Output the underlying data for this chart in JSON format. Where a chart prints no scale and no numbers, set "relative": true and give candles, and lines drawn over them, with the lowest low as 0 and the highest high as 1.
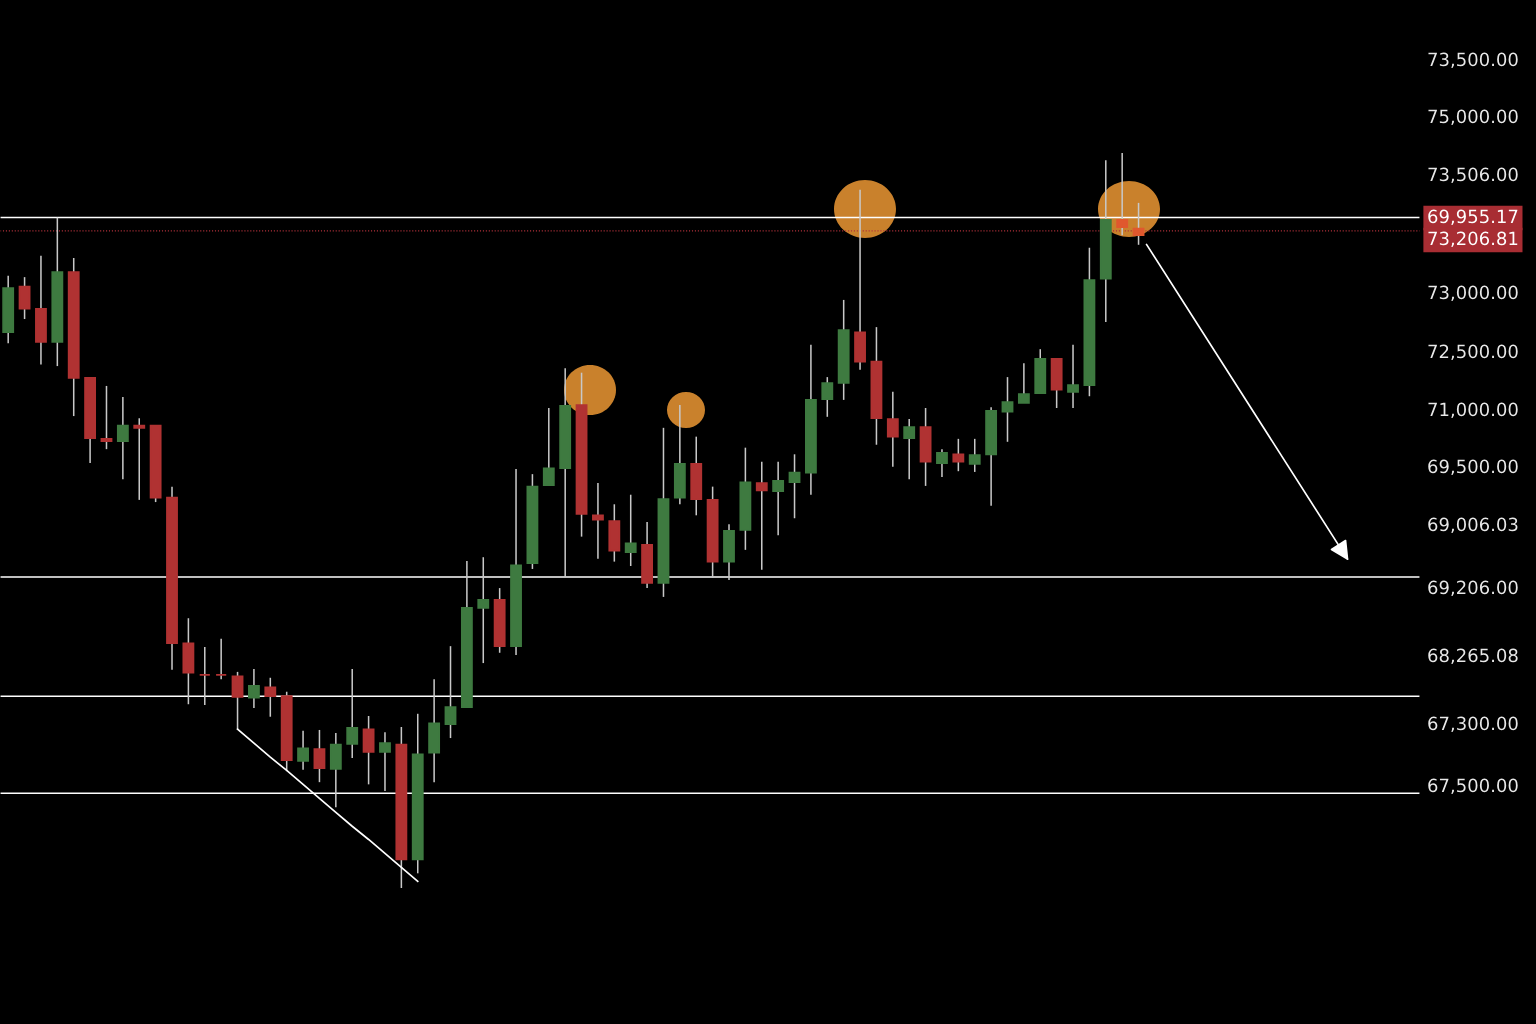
{
  "chart_data": {
    "type": "candlestick",
    "relative": true,
    "tick_labels": "y",
    "grid": false,
    "categories": [
      null,
      null,
      null,
      null,
      null,
      null,
      null,
      null,
      null,
      null,
      null,
      null,
      null,
      null,
      null,
      null,
      null,
      null,
      null,
      null,
      null,
      null,
      null,
      null,
      null,
      null,
      null,
      null,
      null,
      null,
      null,
      null,
      null,
      null,
      null,
      null,
      null,
      null,
      null,
      null,
      null,
      null,
      null,
      null,
      null,
      null,
      null,
      null,
      null,
      null,
      null,
      null,
      null,
      null,
      null,
      null,
      null,
      null,
      null,
      null,
      null,
      null,
      null,
      null,
      null,
      null,
      null,
      null,
      null,
      null
    ],
    "ohlc": [
      [
        0.756,
        0.833,
        0.741,
        0.816
      ],
      [
        0.818,
        0.831,
        0.774,
        0.788
      ],
      [
        0.788,
        0.86,
        0.712,
        0.743
      ],
      [
        0.743,
        0.912,
        0.71,
        0.838
      ],
      [
        0.838,
        0.857,
        0.642,
        0.694
      ],
      [
        0.694,
        0.694,
        0.578,
        0.612
      ],
      [
        0.611,
        0.683,
        0.597,
        0.608
      ],
      [
        0.608,
        0.668,
        0.556,
        0.629
      ],
      [
        0.629,
        0.639,
        0.528,
        0.626
      ],
      [
        0.629,
        0.629,
        0.525,
        0.531
      ],
      [
        0.531,
        0.546,
        0.297,
        0.333
      ],
      [
        0.333,
        0.367,
        0.25,
        0.293
      ],
      [
        0.29,
        0.328,
        0.249,
        0.29
      ],
      [
        0.29,
        0.339,
        0.284,
        0.29
      ],
      [
        0.288,
        0.294,
        0.216,
        0.26
      ],
      [
        0.259,
        0.298,
        0.245,
        0.275
      ],
      [
        0.273,
        0.286,
        0.233,
        0.261
      ],
      [
        0.261,
        0.267,
        0.159,
        0.174
      ],
      [
        0.173,
        0.214,
        0.161,
        0.19
      ],
      [
        0.189,
        0.215,
        0.144,
        0.163
      ],
      [
        0.162,
        0.211,
        0.11,
        0.195
      ],
      [
        0.196,
        0.298,
        0.177,
        0.218
      ],
      [
        0.216,
        0.234,
        0.141,
        0.185
      ],
      [
        0.185,
        0.212,
        0.132,
        0.197
      ],
      [
        0.195,
        0.219,
        0,
        0.039
      ],
      [
        0.039,
        0.237,
        0.02,
        0.182
      ],
      [
        0.184,
        0.284,
        0.144,
        0.224
      ],
      [
        0.223,
        0.329,
        0.204,
        0.246
      ],
      [
        0.246,
        0.445,
        0.246,
        0.381
      ],
      [
        0.381,
        0.45,
        0.306,
        0.392
      ],
      [
        0.392,
        0.408,
        0.32,
        0.329
      ],
      [
        0.329,
        0.57,
        0.317,
        0.439
      ],
      [
        0.442,
        0.563,
        0.434,
        0.546
      ],
      [
        0.548,
        0.653,
        0.548,
        0.571
      ],
      [
        0.571,
        0.707,
        0.423,
        0.656
      ],
      [
        0.657,
        0.701,
        0.478,
        0.509
      ],
      [
        0.507,
        0.551,
        0.448,
        0.501
      ],
      [
        0.499,
        0.522,
        0.444,
        0.459
      ],
      [
        0.457,
        0.535,
        0.438,
        0.469
      ],
      [
        0.467,
        0.498,
        0.408,
        0.415
      ],
      [
        0.415,
        0.626,
        0.396,
        0.529
      ],
      [
        0.531,
        0.657,
        0.522,
        0.577
      ],
      [
        0.577,
        0.614,
        0.507,
        0.529
      ],
      [
        0.528,
        0.546,
        0.422,
        0.444
      ],
      [
        0.444,
        0.495,
        0.419,
        0.486
      ],
      [
        0.487,
        0.599,
        0.46,
        0.552
      ],
      [
        0.551,
        0.58,
        0.433,
        0.541
      ],
      [
        0.54,
        0.58,
        0.48,
        0.554
      ],
      [
        0.552,
        0.59,
        0.503,
        0.565
      ],
      [
        0.565,
        0.739,
        0.535,
        0.664
      ],
      [
        0.665,
        0.695,
        0.641,
        0.687
      ],
      [
        0.687,
        0.8,
        0.664,
        0.759
      ],
      [
        0.756,
        0.95,
        0.705,
        0.716
      ],
      [
        0.716,
        0.763,
        0.603,
        0.639
      ],
      [
        0.638,
        0.675,
        0.573,
        0.614
      ],
      [
        0.612,
        0.638,
        0.556,
        0.627
      ],
      [
        0.627,
        0.653,
        0.547,
        0.58
      ],
      [
        0.578,
        0.597,
        0.559,
        0.592
      ],
      [
        0.59,
        0.611,
        0.567,
        0.58
      ],
      [
        0.577,
        0.611,
        0.566,
        0.589
      ],
      [
        0.59,
        0.654,
        0.52,
        0.649
      ],
      [
        0.648,
        0.695,
        0.607,
        0.661
      ],
      [
        0.66,
        0.714,
        0.66,
        0.672
      ],
      [
        0.673,
        0.733,
        0.673,
        0.72
      ],
      [
        0.72,
        0.72,
        0.653,
        0.678
      ],
      [
        0.675,
        0.739,
        0.653,
        0.684
      ],
      [
        0.684,
        0.871,
        0.669,
        0.827
      ],
      [
        0.829,
        0.99,
        0.77,
        0.909
      ],
      [
        0.909,
        1,
        0.888,
        0.899
      ],
      [
        0.897,
        0.932,
        0.875,
        0.888
      ]
    ],
    "colors": [
      "#3e7a40",
      "#b03232",
      "#b03232",
      "#3e7a40",
      "#b03232",
      "#b03232",
      "#b03232",
      "#3e7a40",
      "#b03232",
      "#b03232",
      "#b03232",
      "#b03232",
      "#b03232",
      "#b03232",
      "#b03232",
      "#3e7a40",
      "#b03232",
      "#b03232",
      "#3e7a40",
      "#b03232",
      "#3e7a40",
      "#3e7a40",
      "#b03232",
      "#3e7a40",
      "#b03232",
      "#3e7a40",
      "#3e7a40",
      "#3e7a40",
      "#3e7a40",
      "#3e7a40",
      "#b03232",
      "#3e7a40",
      "#3e7a40",
      "#3e7a40",
      "#3e7a40",
      "#b03232",
      "#b03232",
      "#b03232",
      "#3e7a40",
      "#b03232",
      "#3e7a40",
      "#3e7a40",
      "#b03232",
      "#b03232",
      "#3e7a40",
      "#3e7a40",
      "#b03232",
      "#3e7a40",
      "#3e7a40",
      "#3e7a40",
      "#3e7a40",
      "#3e7a40",
      "#b03232",
      "#b03232",
      "#b03232",
      "#3e7a40",
      "#b03232",
      "#3e7a40",
      "#b03232",
      "#3e7a40",
      "#3e7a40",
      "#3e7a40",
      "#3e7a40",
      "#3e7a40",
      "#b03232",
      "#3e7a40",
      "#3e7a40",
      "#3e7a40",
      "#e0582e",
      "#e0582e"
    ],
    "series": [
      {
        "type": "line",
        "color": "#ffffff",
        "values": [
          null,
          null,
          null,
          null,
          null,
          null,
          null,
          null,
          null,
          null,
          null,
          null,
          null,
          null,
          0.216,
          0.197,
          0.178,
          0.16,
          0.141,
          0.122,
          0.103,
          0.084,
          0.066,
          0.047,
          0.028,
          0.009,
          null,
          null,
          null,
          null,
          null,
          null,
          null,
          null,
          null,
          null,
          null,
          null,
          null,
          null,
          null,
          null,
          null,
          null,
          null,
          null,
          null,
          null,
          null,
          null,
          null,
          null,
          null,
          null,
          null,
          null,
          null,
          null,
          null,
          null,
          null,
          null,
          null,
          null,
          null,
          null,
          null,
          null,
          null,
          null
        ]
      }
    ],
    "annotations": [
      "73,500.00",
      "75,000.00",
      "73,506.00",
      "69,955.17",
      "73,206.81",
      "73,000.00",
      "72,500.00",
      "71,000.00",
      "69,500.00",
      "69,006.03",
      "69,206.00",
      "68,265.08",
      "67,300.00",
      "67,500.00"
    ],
    "ref_lines": [
      {
        "axis": "y",
        "value": 0.912,
        "color": "#ffffff",
        "line_style": "solid"
      },
      {
        "axis": "y",
        "value": 0.894,
        "color": "#b0303a",
        "line_style": "dotted"
      },
      {
        "axis": "y",
        "value": 0.423,
        "color": "#ffffff",
        "line_style": "solid"
      },
      {
        "axis": "y",
        "value": 0.261,
        "color": "#ffffff",
        "line_style": "solid"
      },
      {
        "axis": "y",
        "value": 0.129,
        "color": "#ffffff",
        "line_style": "solid"
      }
    ]
  }
}
